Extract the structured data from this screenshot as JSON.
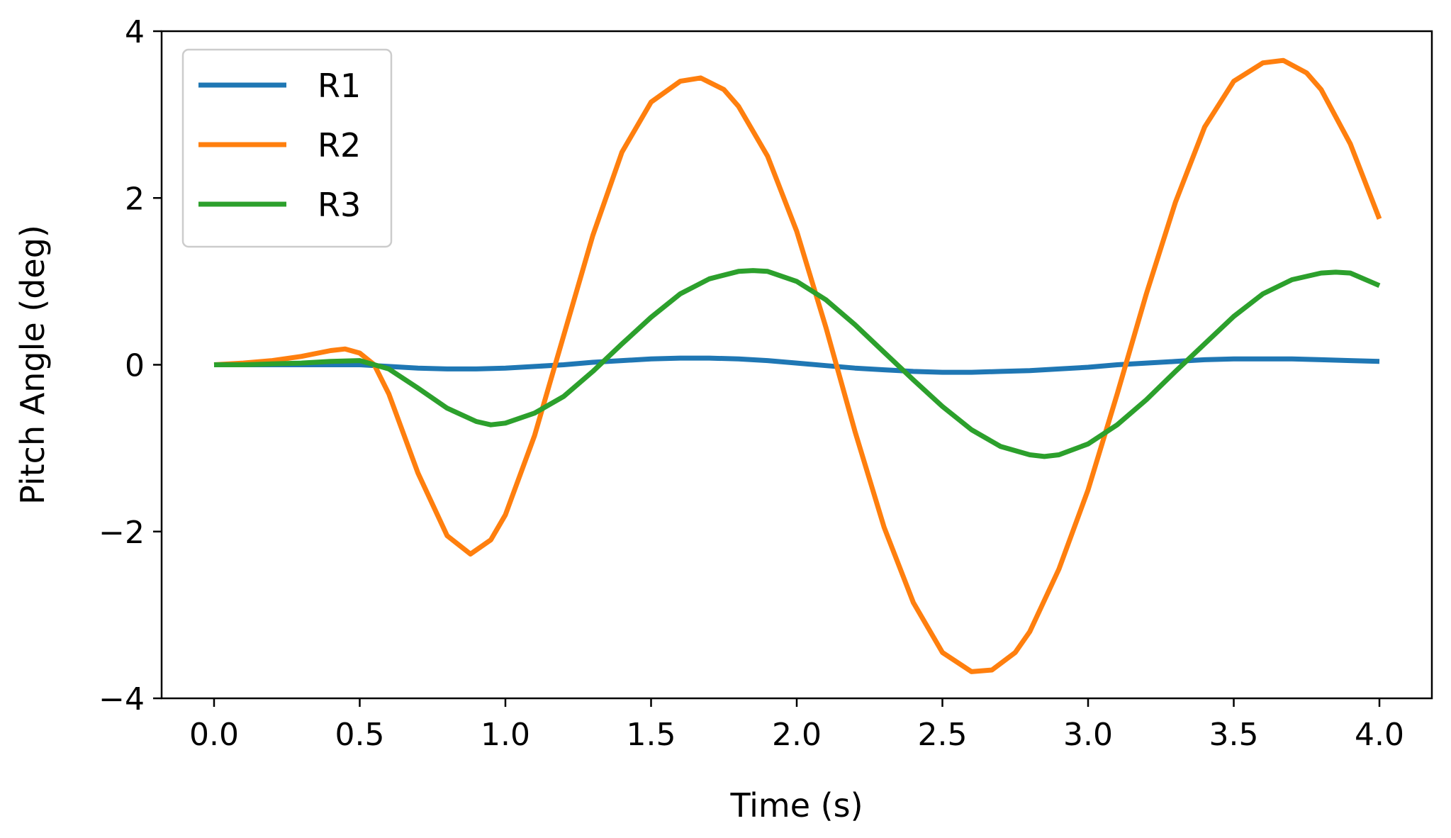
{
  "chart_data": {
    "type": "line",
    "title": "",
    "xlabel": "Time (s)",
    "ylabel": "Pitch Angle (deg)",
    "xlim": [
      -0.18,
      4.18
    ],
    "ylim": [
      -4.0,
      4.0
    ],
    "xticks": [
      0.0,
      0.5,
      1.0,
      1.5,
      2.0,
      2.5,
      3.0,
      3.5,
      4.0
    ],
    "xtick_labels": [
      "0.0",
      "0.5",
      "1.0",
      "1.5",
      "2.0",
      "2.5",
      "3.0",
      "3.5",
      "4.0"
    ],
    "yticks": [
      -4,
      -2,
      0,
      2,
      4
    ],
    "ytick_labels": [
      "−4",
      "−2",
      "0",
      "2",
      "4"
    ],
    "grid": false,
    "legend_position": "upper-left",
    "series": [
      {
        "name": "R1",
        "color": "#1f77b4",
        "x": [
          0.0,
          0.1,
          0.2,
          0.3,
          0.4,
          0.5,
          0.6,
          0.7,
          0.8,
          0.9,
          1.0,
          1.1,
          1.2,
          1.3,
          1.4,
          1.5,
          1.6,
          1.7,
          1.8,
          1.9,
          2.0,
          2.1,
          2.2,
          2.3,
          2.4,
          2.5,
          2.6,
          2.7,
          2.8,
          2.9,
          3.0,
          3.1,
          3.2,
          3.3,
          3.4,
          3.5,
          3.6,
          3.7,
          3.8,
          3.9,
          4.0
        ],
        "y": [
          0.0,
          0.0,
          0.0,
          0.0,
          0.0,
          0.0,
          -0.02,
          -0.04,
          -0.05,
          -0.05,
          -0.04,
          -0.02,
          0.0,
          0.03,
          0.05,
          0.07,
          0.08,
          0.08,
          0.07,
          0.05,
          0.02,
          -0.01,
          -0.04,
          -0.06,
          -0.08,
          -0.09,
          -0.09,
          -0.08,
          -0.07,
          -0.05,
          -0.03,
          0.0,
          0.02,
          0.04,
          0.06,
          0.07,
          0.07,
          0.07,
          0.06,
          0.05,
          0.04
        ]
      },
      {
        "name": "R2",
        "color": "#ff7f0e",
        "x": [
          0.0,
          0.1,
          0.2,
          0.3,
          0.4,
          0.45,
          0.5,
          0.55,
          0.6,
          0.7,
          0.8,
          0.88,
          0.95,
          1.0,
          1.1,
          1.2,
          1.3,
          1.4,
          1.5,
          1.6,
          1.67,
          1.75,
          1.8,
          1.9,
          2.0,
          2.1,
          2.2,
          2.3,
          2.4,
          2.5,
          2.6,
          2.67,
          2.75,
          2.8,
          2.9,
          3.0,
          3.1,
          3.2,
          3.3,
          3.4,
          3.5,
          3.6,
          3.67,
          3.75,
          3.8,
          3.9,
          4.0
        ],
        "y": [
          0.0,
          0.02,
          0.05,
          0.1,
          0.17,
          0.19,
          0.14,
          0.0,
          -0.35,
          -1.3,
          -2.05,
          -2.27,
          -2.1,
          -1.8,
          -0.85,
          0.35,
          1.55,
          2.55,
          3.15,
          3.4,
          3.44,
          3.3,
          3.1,
          2.5,
          1.6,
          0.45,
          -0.8,
          -1.95,
          -2.85,
          -3.45,
          -3.68,
          -3.66,
          -3.45,
          -3.2,
          -2.45,
          -1.5,
          -0.35,
          0.85,
          1.95,
          2.85,
          3.4,
          3.62,
          3.65,
          3.5,
          3.3,
          2.65,
          1.75
        ]
      },
      {
        "name": "R3",
        "color": "#2ca02c",
        "x": [
          0.0,
          0.1,
          0.2,
          0.3,
          0.4,
          0.5,
          0.6,
          0.7,
          0.8,
          0.9,
          0.95,
          1.0,
          1.1,
          1.2,
          1.3,
          1.4,
          1.5,
          1.6,
          1.7,
          1.8,
          1.85,
          1.9,
          2.0,
          2.1,
          2.2,
          2.3,
          2.4,
          2.5,
          2.6,
          2.7,
          2.8,
          2.85,
          2.9,
          3.0,
          3.1,
          3.2,
          3.3,
          3.4,
          3.5,
          3.6,
          3.7,
          3.8,
          3.85,
          3.9,
          4.0
        ],
        "y": [
          0.0,
          0.0,
          0.01,
          0.02,
          0.04,
          0.05,
          -0.05,
          -0.28,
          -0.52,
          -0.68,
          -0.72,
          -0.7,
          -0.58,
          -0.38,
          -0.08,
          0.25,
          0.57,
          0.85,
          1.03,
          1.12,
          1.13,
          1.12,
          1.0,
          0.78,
          0.48,
          0.15,
          -0.18,
          -0.5,
          -0.78,
          -0.98,
          -1.08,
          -1.1,
          -1.08,
          -0.95,
          -0.72,
          -0.42,
          -0.08,
          0.25,
          0.58,
          0.85,
          1.02,
          1.1,
          1.11,
          1.1,
          0.95
        ]
      }
    ]
  }
}
